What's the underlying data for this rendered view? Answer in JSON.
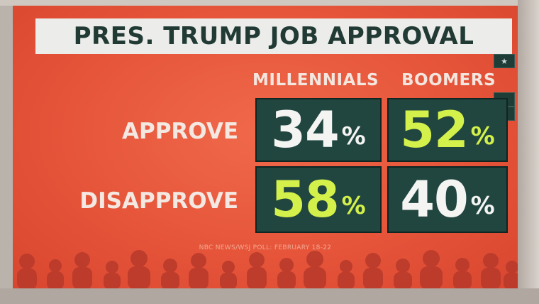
{
  "title": "PRES. TRUMP JOB APPROVAL",
  "columns": [
    "MILLENNIALS",
    "BOOMERS"
  ],
  "rows": [
    {
      "label": "APPROVE",
      "values": [
        {
          "num": "34",
          "pct": "%",
          "color": "#f4f4f2"
        },
        {
          "num": "52",
          "pct": "%",
          "color": "#d4f04a"
        }
      ]
    },
    {
      "label": "DISAPPROVE",
      "values": [
        {
          "num": "58",
          "pct": "%",
          "color": "#d4f04a"
        },
        {
          "num": "40",
          "pct": "%",
          "color": "#f4f4f2"
        }
      ]
    }
  ],
  "source": "NBC NEWS/WSJ POLL: FEBRUARY 18-22",
  "side_icons": [
    "star-icon",
    "camera-icon",
    "slash-icon"
  ],
  "colors": {
    "background": "#e6553a",
    "cell": "#214640",
    "highlight": "#d4f04a",
    "text": "#f4f4f2"
  }
}
